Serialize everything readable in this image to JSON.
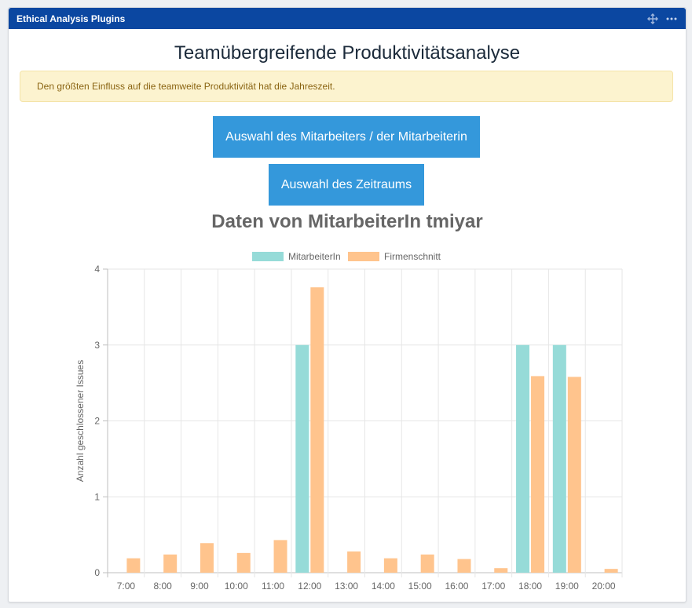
{
  "panel": {
    "title": "Ethical Analysis Plugins",
    "icons": [
      "move-icon",
      "more-options-icon"
    ]
  },
  "page": {
    "title": "Teamübergreifende Produktivitätsanalyse",
    "alert_text": "Den größten Einfluss auf die teamweite Produktivität hat die Jahreszeit."
  },
  "buttons": {
    "employee_label": "Auswahl des Mitarbeiters / der Mitarbeiterin",
    "period_label": "Auswahl des Zeitraums"
  },
  "colors": {
    "header": "#0b47a1",
    "button": "#3498db",
    "series_employee": "#96dbd8",
    "series_company": "#ffc48d"
  },
  "chart_data": {
    "type": "bar",
    "title": "Daten von MitarbeiterIn tmiyar",
    "xlabel": "",
    "ylabel": "Anzahl geschlossener Issues",
    "ylim": [
      0,
      4
    ],
    "yticks": [
      "0",
      "1",
      "2",
      "3",
      "4"
    ],
    "grid": true,
    "legend_position": "top",
    "categories": [
      "7:00",
      "8:00",
      "9:00",
      "10:00",
      "11:00",
      "12:00",
      "13:00",
      "14:00",
      "15:00",
      "16:00",
      "17:00",
      "18:00",
      "19:00",
      "20:00"
    ],
    "series": [
      {
        "name": "MitarbeiterIn",
        "color": "#96dbd8",
        "values": [
          0,
          0,
          0,
          0,
          0,
          3,
          0,
          0,
          0,
          0,
          0,
          3,
          3,
          0
        ]
      },
      {
        "name": "Firmenschnitt",
        "color": "#ffc48d",
        "values": [
          0.19,
          0.24,
          0.39,
          0.26,
          0.43,
          3.76,
          0.28,
          0.19,
          0.24,
          0.18,
          0.06,
          2.59,
          2.58,
          0.05
        ]
      }
    ]
  }
}
